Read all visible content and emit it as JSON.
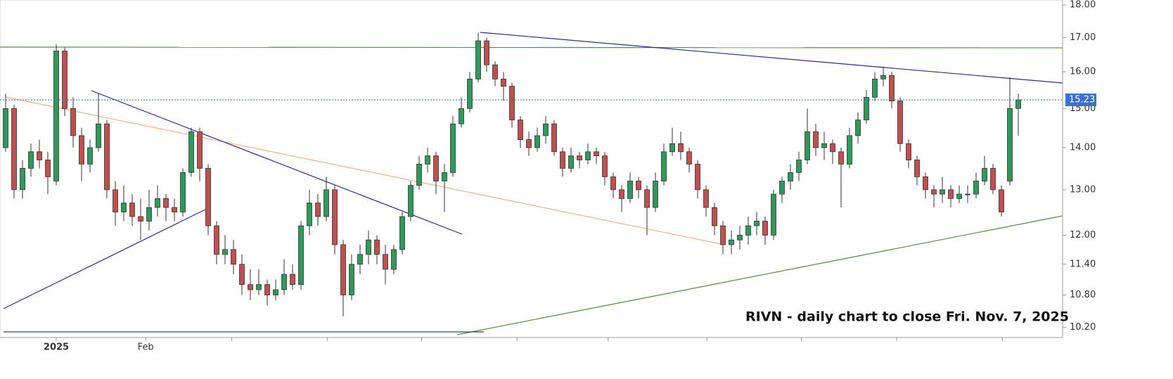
{
  "chart_data": {
    "type": "candlestick",
    "annotation": "RIVN - daily chart to close Fri. Nov. 7, 2025",
    "log_scale": true,
    "ylim": [
      10.02,
      18.16
    ],
    "yticks": [
      {
        "value": 18,
        "label": "18.00"
      },
      {
        "value": 17,
        "label": "17.00"
      },
      {
        "value": 16,
        "label": "16.00"
      },
      {
        "value": 15,
        "label": "15.00"
      },
      {
        "value": 14,
        "label": "14.00"
      },
      {
        "value": 13,
        "label": "13.00"
      },
      {
        "value": 12,
        "label": "12.00"
      },
      {
        "value": 11.4,
        "label": "11.40"
      },
      {
        "value": 10.8,
        "label": "10.80"
      },
      {
        "value": 10.2,
        "label": "10.20"
      }
    ],
    "xticks": [
      {
        "value": 6,
        "label": "2025"
      },
      {
        "value": 16.6,
        "label": "Feb"
      },
      {
        "value": 26.8,
        "label": null
      },
      {
        "value": 38.1,
        "label": null
      },
      {
        "value": 49.3,
        "label": null
      },
      {
        "value": 60.6,
        "label": null
      },
      {
        "value": 71.4,
        "label": null
      },
      {
        "value": 83.1,
        "label": null
      },
      {
        "value": 94.3,
        "label": null
      },
      {
        "value": 105.6,
        "label": null
      },
      {
        "value": 118.1,
        "label": null
      }
    ],
    "up_color": "#2e9a5a",
    "down_color": "#c0504d",
    "ohlc": [
      [
        14.0,
        15.4,
        13.9,
        15.0
      ],
      [
        15.0,
        15.1,
        12.8,
        13.0
      ],
      [
        13.0,
        13.7,
        12.8,
        13.5
      ],
      [
        13.5,
        14.1,
        13.3,
        13.9
      ],
      [
        13.9,
        14.2,
        13.5,
        13.7
      ],
      [
        13.7,
        13.9,
        12.9,
        13.3
      ],
      [
        13.2,
        16.8,
        13.1,
        16.6
      ],
      [
        16.6,
        16.7,
        14.8,
        15.0
      ],
      [
        15.0,
        15.3,
        14.0,
        14.3
      ],
      [
        14.3,
        14.5,
        13.2,
        13.6
      ],
      [
        13.6,
        14.2,
        13.4,
        14.0
      ],
      [
        14.0,
        15.4,
        13.9,
        14.6
      ],
      [
        14.6,
        14.7,
        12.8,
        13.0
      ],
      [
        13.0,
        13.2,
        12.2,
        12.5
      ],
      [
        12.5,
        13.1,
        12.3,
        12.7
      ],
      [
        12.7,
        12.9,
        12.2,
        12.4
      ],
      [
        12.4,
        12.8,
        11.9,
        12.3
      ],
      [
        12.3,
        13.0,
        12.1,
        12.6
      ],
      [
        12.6,
        13.1,
        12.4,
        12.8
      ],
      [
        12.8,
        12.9,
        12.3,
        12.6
      ],
      [
        12.6,
        12.8,
        12.3,
        12.5
      ],
      [
        12.5,
        13.5,
        12.4,
        13.4
      ],
      [
        13.4,
        14.5,
        13.3,
        14.4
      ],
      [
        14.4,
        14.5,
        13.2,
        13.5
      ],
      [
        13.5,
        13.6,
        12.0,
        12.2
      ],
      [
        12.2,
        12.3,
        11.4,
        11.6
      ],
      [
        11.6,
        12.0,
        11.4,
        11.7
      ],
      [
        11.7,
        11.9,
        11.2,
        11.4
      ],
      [
        11.4,
        11.6,
        10.8,
        11.0
      ],
      [
        11.0,
        11.3,
        10.7,
        10.9
      ],
      [
        10.9,
        11.3,
        10.8,
        11.0
      ],
      [
        11.0,
        11.1,
        10.6,
        10.8
      ],
      [
        10.8,
        11.1,
        10.7,
        10.9
      ],
      [
        10.9,
        11.5,
        10.8,
        11.2
      ],
      [
        11.2,
        11.4,
        10.9,
        11.0
      ],
      [
        11.0,
        12.3,
        10.9,
        12.2
      ],
      [
        12.2,
        13.0,
        12.0,
        12.7
      ],
      [
        12.7,
        12.9,
        12.2,
        12.4
      ],
      [
        12.4,
        13.3,
        12.3,
        13.0
      ],
      [
        13.0,
        13.1,
        11.6,
        11.8
      ],
      [
        11.8,
        11.9,
        10.4,
        10.8
      ],
      [
        10.8,
        11.6,
        10.7,
        11.4
      ],
      [
        11.4,
        11.8,
        11.2,
        11.6
      ],
      [
        11.6,
        12.1,
        11.4,
        11.9
      ],
      [
        11.9,
        12.0,
        11.4,
        11.6
      ],
      [
        11.6,
        11.8,
        11.0,
        11.3
      ],
      [
        11.3,
        11.8,
        11.2,
        11.7
      ],
      [
        11.7,
        12.5,
        11.6,
        12.4
      ],
      [
        12.4,
        13.2,
        12.3,
        13.1
      ],
      [
        13.1,
        13.8,
        13.0,
        13.6
      ],
      [
        13.6,
        14.0,
        13.4,
        13.8
      ],
      [
        13.8,
        13.9,
        12.9,
        13.2
      ],
      [
        13.2,
        13.6,
        12.5,
        13.4
      ],
      [
        13.4,
        14.8,
        13.3,
        14.6
      ],
      [
        14.6,
        15.3,
        14.5,
        15.0
      ],
      [
        15.0,
        16.0,
        14.9,
        15.8
      ],
      [
        15.8,
        17.15,
        15.7,
        16.9
      ],
      [
        16.9,
        17.0,
        16.0,
        16.2
      ],
      [
        16.2,
        16.3,
        15.6,
        15.8
      ],
      [
        15.8,
        16.0,
        15.2,
        15.6
      ],
      [
        15.6,
        15.7,
        14.5,
        14.7
      ],
      [
        14.7,
        14.8,
        14.0,
        14.2
      ],
      [
        14.2,
        14.4,
        13.8,
        14.0
      ],
      [
        14.0,
        14.5,
        13.9,
        14.3
      ],
      [
        14.3,
        14.8,
        14.1,
        14.6
      ],
      [
        14.6,
        14.7,
        13.8,
        13.9
      ],
      [
        13.9,
        14.0,
        13.3,
        13.5
      ],
      [
        13.5,
        14.0,
        13.4,
        13.8
      ],
      [
        13.8,
        13.9,
        13.5,
        13.7
      ],
      [
        13.7,
        14.1,
        13.6,
        13.9
      ],
      [
        13.9,
        14.0,
        13.6,
        13.8
      ],
      [
        13.8,
        13.9,
        13.1,
        13.3
      ],
      [
        13.3,
        13.4,
        12.8,
        13.0
      ],
      [
        13.0,
        13.1,
        12.5,
        12.8
      ],
      [
        12.8,
        13.4,
        12.7,
        13.2
      ],
      [
        13.2,
        13.3,
        12.8,
        13.0
      ],
      [
        13.0,
        13.1,
        12.0,
        12.6
      ],
      [
        12.6,
        13.4,
        12.5,
        13.2
      ],
      [
        13.2,
        14.1,
        13.1,
        13.9
      ],
      [
        13.9,
        14.5,
        13.8,
        14.1
      ],
      [
        14.1,
        14.4,
        13.7,
        13.9
      ],
      [
        13.9,
        14.0,
        13.4,
        13.6
      ],
      [
        13.6,
        13.7,
        12.8,
        13.0
      ],
      [
        13.0,
        13.1,
        12.4,
        12.6
      ],
      [
        12.6,
        12.7,
        12.0,
        12.2
      ],
      [
        12.2,
        12.3,
        11.6,
        11.8
      ],
      [
        11.8,
        12.1,
        11.6,
        11.9
      ],
      [
        11.9,
        12.2,
        11.7,
        12.0
      ],
      [
        12.0,
        12.4,
        11.8,
        12.2
      ],
      [
        12.2,
        12.5,
        12.0,
        12.3
      ],
      [
        12.3,
        12.4,
        11.8,
        12.0
      ],
      [
        12.0,
        13.0,
        11.9,
        12.9
      ],
      [
        12.9,
        13.3,
        12.7,
        13.2
      ],
      [
        13.2,
        13.6,
        13.0,
        13.4
      ],
      [
        13.4,
        13.9,
        13.2,
        13.7
      ],
      [
        13.7,
        15.0,
        13.6,
        14.4
      ],
      [
        14.4,
        14.6,
        13.8,
        14.0
      ],
      [
        14.0,
        14.4,
        13.7,
        14.1
      ],
      [
        14.1,
        14.2,
        13.6,
        13.9
      ],
      [
        13.9,
        14.0,
        12.6,
        13.6
      ],
      [
        13.6,
        14.5,
        13.5,
        14.3
      ],
      [
        14.3,
        14.9,
        14.1,
        14.7
      ],
      [
        14.7,
        15.5,
        14.6,
        15.3
      ],
      [
        15.3,
        16.0,
        15.2,
        15.8
      ],
      [
        15.8,
        16.15,
        15.6,
        15.9
      ],
      [
        15.9,
        16.0,
        15.0,
        15.2
      ],
      [
        15.2,
        15.3,
        13.9,
        14.1
      ],
      [
        14.1,
        14.2,
        13.5,
        13.7
      ],
      [
        13.7,
        13.8,
        13.1,
        13.3
      ],
      [
        13.3,
        13.4,
        12.8,
        13.0
      ],
      [
        13.0,
        13.1,
        12.6,
        12.9
      ],
      [
        12.9,
        13.3,
        12.7,
        13.0
      ],
      [
        13.0,
        13.1,
        12.6,
        12.8
      ],
      [
        12.8,
        13.1,
        12.7,
        12.9
      ],
      [
        12.9,
        13.1,
        12.7,
        12.9
      ],
      [
        12.9,
        13.4,
        12.8,
        13.2
      ],
      [
        13.2,
        13.8,
        13.1,
        13.5
      ],
      [
        13.5,
        13.6,
        12.9,
        13.0
      ],
      [
        13.0,
        13.1,
        12.4,
        12.5
      ],
      [
        13.2,
        15.85,
        13.1,
        15.0
      ],
      [
        15.0,
        15.4,
        14.3,
        15.23
      ]
    ]
  }
}
